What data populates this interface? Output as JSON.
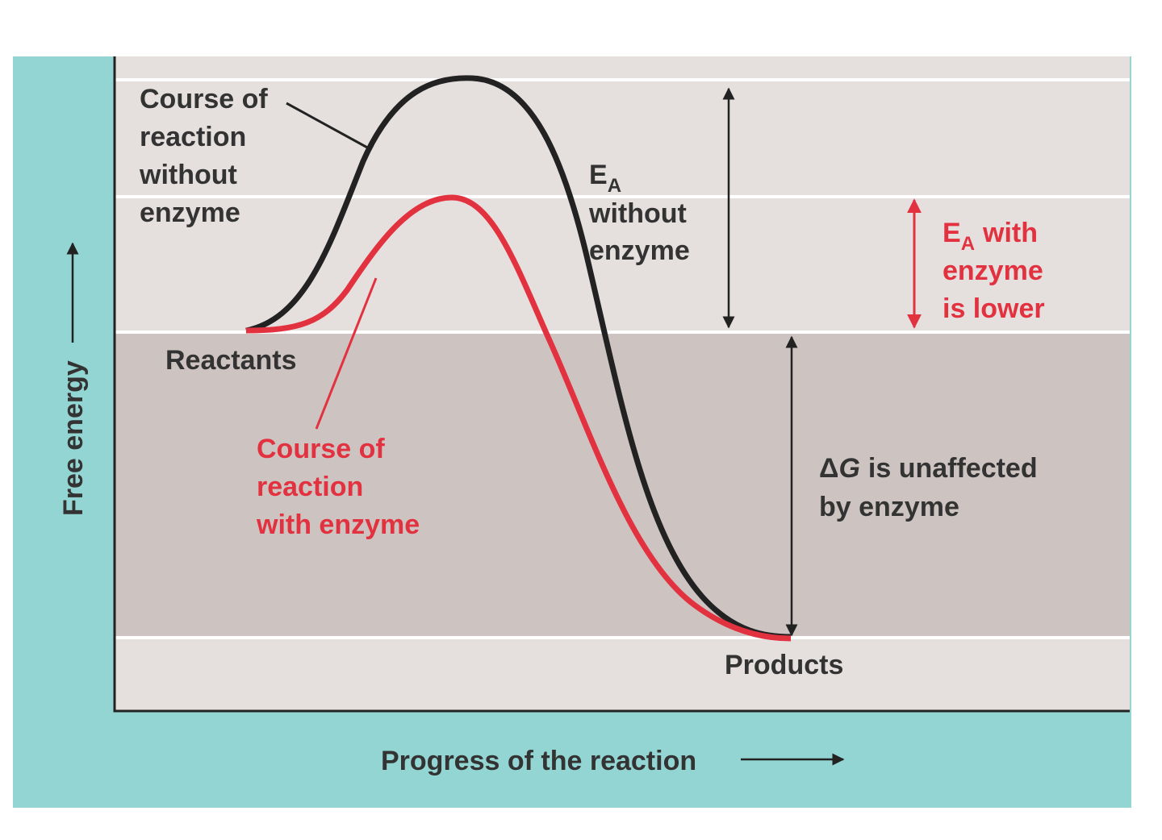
{
  "axes": {
    "y_label": "Free energy",
    "x_label": "Progress of the reaction"
  },
  "labels": {
    "uncatalyzed": [
      "Course of",
      "reaction",
      "without",
      "enzyme"
    ],
    "catalyzed": [
      "Course of",
      "reaction",
      "with enzyme"
    ],
    "reactants": "Reactants",
    "products": "Products",
    "ea_without": {
      "symbol": "E",
      "subscript": "A",
      "lines": [
        "without",
        "enzyme"
      ]
    },
    "ea_with": {
      "symbol": "E",
      "subscript": "A",
      "suffix": "with",
      "lines": [
        "enzyme",
        "is lower"
      ]
    },
    "delta_g": {
      "symbol": "Δ",
      "variable": "G",
      "rest": "is unaffected",
      "line2": "by enzyme"
    }
  }
}
